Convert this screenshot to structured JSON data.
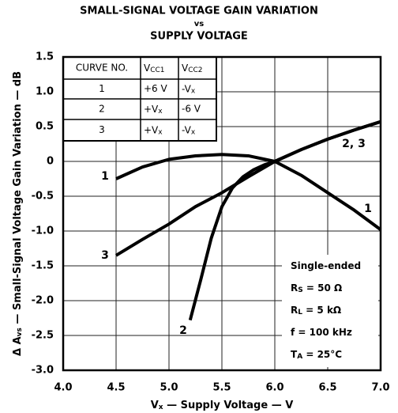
{
  "chart_data": {
    "type": "line",
    "title": [
      "SMALL-SIGNAL VOLTAGE GAIN VARIATION",
      "vs",
      "SUPPLY VOLTAGE"
    ],
    "xlabel": [
      {
        "t": "V",
        "s": "x",
        "r": " — Supply Voltage — V"
      }
    ],
    "ylabel": [
      {
        "t": "Δ A",
        "s": "vs",
        "r": " — Small-Signal Voltage Gain Variation — dB"
      }
    ],
    "xlim": [
      4.0,
      7.0
    ],
    "ylim": [
      -3.0,
      1.5
    ],
    "xticks": [
      {
        "value": 4.0,
        "label": "4.0"
      },
      4.5,
      {
        "value": 5.0,
        "label": "5.0"
      },
      5.5,
      {
        "value": 6.0,
        "label": "6.0"
      },
      6.5,
      {
        "value": 7.0,
        "label": "7.0"
      }
    ],
    "yticks": [
      1.5,
      {
        "value": 1.0,
        "label": "1.0"
      },
      0.5,
      0,
      -0.5,
      {
        "value": -1.0,
        "label": "-1.0"
      },
      -1.5,
      {
        "value": -2.0,
        "label": "-2.0"
      },
      -2.5,
      {
        "value": -3.0,
        "label": "-3.0"
      }
    ],
    "grid": true,
    "color": "#000000",
    "series": [
      {
        "name": "1",
        "x": [
          4.5,
          4.75,
          5.0,
          5.25,
          5.5,
          5.75,
          6.0,
          6.25,
          6.5,
          6.75,
          7.0
        ],
        "values": [
          -0.25,
          -0.08,
          0.03,
          0.08,
          0.1,
          0.08,
          0.0,
          -0.2,
          -0.45,
          -0.7,
          -0.98
        ]
      },
      {
        "name": "2",
        "x": [
          5.2,
          5.3,
          5.4,
          5.5,
          5.6,
          5.7,
          5.8,
          5.9,
          6.0,
          6.25,
          6.5,
          6.75,
          7.0
        ],
        "values": [
          -2.28,
          -1.7,
          -1.1,
          -0.65,
          -0.38,
          -0.22,
          -0.12,
          -0.05,
          0.0,
          0.17,
          0.32,
          0.45,
          0.57
        ]
      },
      {
        "name": "3",
        "x": [
          4.5,
          4.75,
          5.0,
          5.25,
          5.5,
          5.75,
          6.0,
          6.25,
          6.5,
          6.75,
          7.0
        ],
        "values": [
          -1.35,
          -1.12,
          -0.9,
          -0.65,
          -0.45,
          -0.22,
          0.0,
          0.17,
          0.32,
          0.45,
          0.57
        ]
      }
    ],
    "curve_labels": [
      "1",
      "1",
      "2",
      "3",
      "2, 3"
    ],
    "table": [
      [
        "CURVE NO.",
        {
          "t": "V",
          "s": "CC1"
        },
        {
          "t": "V",
          "s": "CC2"
        }
      ],
      [
        "1",
        "+6 V",
        {
          "t": "-V",
          "s": "x"
        }
      ],
      [
        "2",
        {
          "t": "+V",
          "s": "x"
        },
        "-6 V"
      ],
      [
        "3",
        {
          "t": "+V",
          "s": "x"
        },
        {
          "t": "-V",
          "s": "x"
        }
      ]
    ],
    "conditions": [
      {
        "t": "Single-ended"
      },
      {
        "t": "R",
        "s": "S",
        "r": " = 50 Ω"
      },
      {
        "t": "R",
        "s": "L",
        "r": " = 5 kΩ"
      },
      {
        "t": "f = 100 kHz"
      },
      {
        "t": "T",
        "s": "A",
        "r": " = 25°C"
      }
    ]
  }
}
